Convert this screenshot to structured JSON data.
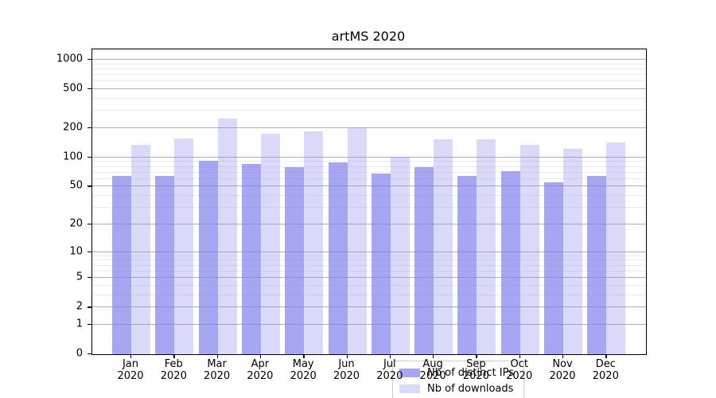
{
  "chart_data": {
    "type": "bar",
    "title": "artMS 2020",
    "categories": [
      "Jan",
      "Feb",
      "Mar",
      "Apr",
      "May",
      "Jun",
      "Jul",
      "Aug",
      "Sep",
      "Oct",
      "Nov",
      "Dec"
    ],
    "x_tick_year": "2020",
    "series": [
      {
        "name": "Nb of distinct IPs",
        "color": "rgba(128,128,238,0.7)",
        "values": [
          64,
          65,
          92,
          86,
          80,
          89,
          68,
          79,
          64,
          73,
          56,
          64
        ]
      },
      {
        "name": "Nb of downloads",
        "color": "rgba(128,128,238,0.3)",
        "values": [
          135,
          158,
          252,
          174,
          186,
          203,
          101,
          153,
          153,
          135,
          123,
          144
        ]
      }
    ],
    "y_axis": {
      "scale": "symlog",
      "tick_labels": [
        "0",
        "1",
        "2",
        "5",
        "10",
        "20",
        "50",
        "100",
        "200",
        "500",
        "1000"
      ],
      "ticks": [
        0,
        1,
        2,
        5,
        10,
        20,
        50,
        100,
        200,
        500,
        1000
      ],
      "minor_ticks": [
        3,
        4,
        6,
        7,
        8,
        9,
        30,
        40,
        60,
        70,
        80,
        90,
        300,
        400,
        600,
        700,
        800,
        900
      ],
      "ylim": [
        0,
        1000
      ]
    },
    "grid": "on",
    "legend_position": "lower center",
    "colors": {
      "major_grid": "#b0b0b0",
      "minor_grid": "#ebebeb",
      "spine": "#000000"
    }
  }
}
